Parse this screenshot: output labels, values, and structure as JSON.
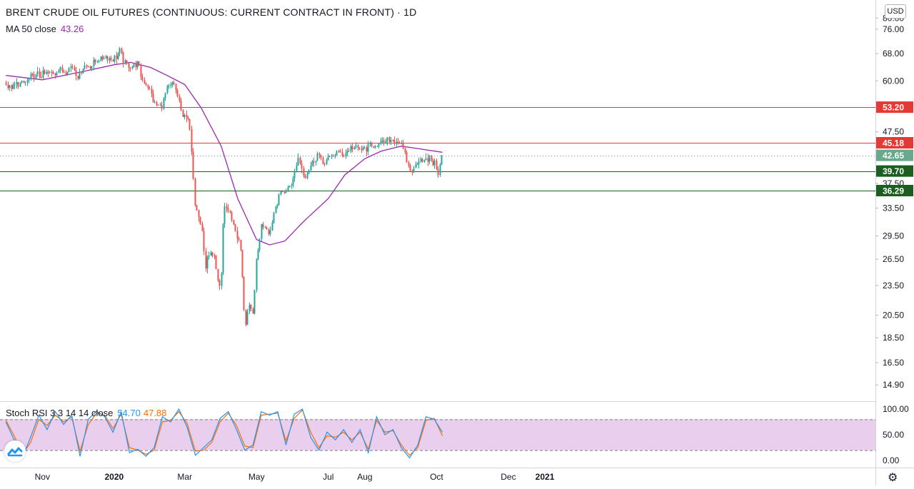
{
  "header": {
    "title": "BRENT CRUDE OIL FUTURES (CONTINUOUS: CURRENT CONTRACT IN FRONT) · 1D",
    "ma_label": "MA 50 close",
    "ma_value": "43.26",
    "currency_button": "USD"
  },
  "oscillator": {
    "label": "Stoch RSI 3 3 14 14 close",
    "k_value": "54.70",
    "d_value": "47.88",
    "axis_labels": [
      "100.00",
      "50.00",
      "0.00"
    ],
    "band_upper": 80,
    "band_lower": 20
  },
  "colors": {
    "up": "#26a69a",
    "down": "#ef5350",
    "ma": "#9c27b0",
    "resistance": "#e53935",
    "support": "#1b5e20",
    "last_price": "#6aa88c",
    "k_line": "#2196f3",
    "d_line": "#ff6d00",
    "band_fill": "#e1bee7"
  },
  "icons": {
    "logo": "tradingview-logo-icon",
    "settings": "gear-icon"
  },
  "chart_data": {
    "type": "candlestick",
    "title": "BRENT CRUDE OIL FUTURES (CONTINUOUS: CURRENT CONTRACT IN FRONT) · 1D",
    "price_axis_labels": [
      "80.00",
      "76.00",
      "68.00",
      "60.00",
      "47.50",
      "37.50",
      "33.50",
      "29.50",
      "26.50",
      "23.50",
      "20.50",
      "18.50",
      "16.50",
      "14.90"
    ],
    "time_axis_labels": [
      "Nov",
      "2020",
      "Mar",
      "May",
      "Jul",
      "Aug",
      "Oct",
      "Dec",
      "2021"
    ],
    "scale": "log",
    "horizontal_levels": [
      {
        "value": 53.2,
        "label": "53.20",
        "kind": "resistance"
      },
      {
        "value": 45.18,
        "label": "45.18",
        "kind": "resistance"
      },
      {
        "value": 39.7,
        "label": "39.70",
        "kind": "support"
      },
      {
        "value": 36.29,
        "label": "36.29",
        "kind": "support"
      }
    ],
    "last_price": {
      "value": 42.65,
      "label": "42.65"
    },
    "price_path": [
      [
        "2019-10-01",
        59.5
      ],
      [
        "2019-10-03",
        58.0
      ],
      [
        "2019-10-08",
        58.6
      ],
      [
        "2019-10-10",
        59.1
      ],
      [
        "2019-10-15",
        59.3
      ],
      [
        "2019-10-18",
        59.6
      ],
      [
        "2019-10-23",
        61.2
      ],
      [
        "2019-10-28",
        61.6
      ],
      [
        "2019-11-01",
        61.7
      ],
      [
        "2019-11-06",
        62.2
      ],
      [
        "2019-11-11",
        62.2
      ],
      [
        "2019-11-15",
        63.3
      ],
      [
        "2019-11-20",
        62.4
      ],
      [
        "2019-11-26",
        64.3
      ],
      [
        "2019-12-02",
        61.0
      ],
      [
        "2019-12-06",
        64.4
      ],
      [
        "2019-12-12",
        64.2
      ],
      [
        "2019-12-18",
        66.2
      ],
      [
        "2019-12-24",
        67.2
      ],
      [
        "2019-12-31",
        66.0
      ],
      [
        "2020-01-06",
        68.9
      ],
      [
        "2020-01-10",
        65.0
      ],
      [
        "2020-01-15",
        64.0
      ],
      [
        "2020-01-21",
        65.2
      ],
      [
        "2020-01-24",
        60.7
      ],
      [
        "2020-01-30",
        58.3
      ],
      [
        "2020-02-04",
        54.0
      ],
      [
        "2020-02-10",
        53.3
      ],
      [
        "2020-02-14",
        57.3
      ],
      [
        "2020-02-20",
        59.3
      ],
      [
        "2020-02-25",
        54.9
      ],
      [
        "2020-02-28",
        50.5
      ],
      [
        "2020-03-03",
        51.9
      ],
      [
        "2020-03-06",
        45.3
      ],
      [
        "2020-03-09",
        34.4
      ],
      [
        "2020-03-12",
        33.2
      ],
      [
        "2020-03-16",
        30.0
      ],
      [
        "2020-03-18",
        24.9
      ],
      [
        "2020-03-20",
        26.9
      ],
      [
        "2020-03-25",
        27.4
      ],
      [
        "2020-03-30",
        22.8
      ],
      [
        "2020-04-01",
        24.7
      ],
      [
        "2020-04-03",
        34.1
      ],
      [
        "2020-04-08",
        32.8
      ],
      [
        "2020-04-14",
        29.6
      ],
      [
        "2020-04-17",
        28.1
      ],
      [
        "2020-04-21",
        19.3
      ],
      [
        "2020-04-24",
        21.4
      ],
      [
        "2020-04-28",
        20.5
      ],
      [
        "2020-04-30",
        25.3
      ],
      [
        "2020-05-05",
        30.9
      ],
      [
        "2020-05-08",
        30.9
      ],
      [
        "2020-05-12",
        29.8
      ],
      [
        "2020-05-15",
        32.5
      ],
      [
        "2020-05-20",
        35.8
      ],
      [
        "2020-05-26",
        36.2
      ],
      [
        "2020-06-01",
        38.3
      ],
      [
        "2020-06-05",
        42.3
      ],
      [
        "2020-06-11",
        38.6
      ],
      [
        "2020-06-16",
        40.9
      ],
      [
        "2020-06-22",
        43.1
      ],
      [
        "2020-06-26",
        41.0
      ],
      [
        "2020-07-01",
        42.0
      ],
      [
        "2020-07-08",
        43.3
      ],
      [
        "2020-07-14",
        42.9
      ],
      [
        "2020-07-21",
        44.3
      ],
      [
        "2020-07-28",
        43.8
      ],
      [
        "2020-08-03",
        44.2
      ],
      [
        "2020-08-07",
        44.4
      ],
      [
        "2020-08-13",
        44.9
      ],
      [
        "2020-08-19",
        45.4
      ],
      [
        "2020-08-25",
        45.9
      ],
      [
        "2020-08-31",
        45.3
      ],
      [
        "2020-09-04",
        42.7
      ],
      [
        "2020-09-08",
        39.8
      ],
      [
        "2020-09-11",
        39.8
      ],
      [
        "2020-09-16",
        42.2
      ],
      [
        "2020-09-21",
        41.4
      ],
      [
        "2020-09-25",
        42.0
      ],
      [
        "2020-09-30",
        40.9
      ],
      [
        "2020-10-02",
        39.3
      ],
      [
        "2020-10-06",
        42.65
      ]
    ],
    "moving_average": [
      [
        "2019-10-01",
        61.5
      ],
      [
        "2019-11-01",
        60.3
      ],
      [
        "2019-12-01",
        62.3
      ],
      [
        "2020-01-01",
        64.6
      ],
      [
        "2020-01-15",
        65.3
      ],
      [
        "2020-02-01",
        63.8
      ],
      [
        "2020-02-15",
        61.5
      ],
      [
        "2020-03-01",
        59.0
      ],
      [
        "2020-03-15",
        53.0
      ],
      [
        "2020-04-01",
        44.5
      ],
      [
        "2020-04-15",
        35.0
      ],
      [
        "2020-05-01",
        29.0
      ],
      [
        "2020-05-12",
        28.3
      ],
      [
        "2020-05-25",
        28.8
      ],
      [
        "2020-06-10",
        31.5
      ],
      [
        "2020-07-01",
        35.0
      ],
      [
        "2020-07-15",
        39.0
      ],
      [
        "2020-08-01",
        42.0
      ],
      [
        "2020-08-15",
        43.5
      ],
      [
        "2020-09-01",
        44.5
      ],
      [
        "2020-09-15",
        44.0
      ],
      [
        "2020-10-06",
        43.26
      ]
    ],
    "stoch_rsi_k": [
      [
        "2019-10-01",
        75
      ],
      [
        "2019-10-08",
        40
      ],
      [
        "2019-10-15",
        5
      ],
      [
        "2019-10-22",
        45
      ],
      [
        "2019-10-29",
        88
      ],
      [
        "2019-11-05",
        60
      ],
      [
        "2019-11-12",
        95
      ],
      [
        "2019-11-19",
        70
      ],
      [
        "2019-11-26",
        88
      ],
      [
        "2019-12-03",
        8
      ],
      [
        "2019-12-10",
        80
      ],
      [
        "2019-12-17",
        96
      ],
      [
        "2019-12-24",
        85
      ],
      [
        "2019-12-31",
        55
      ],
      [
        "2020-01-07",
        95
      ],
      [
        "2020-01-14",
        15
      ],
      [
        "2020-01-21",
        22
      ],
      [
        "2020-01-28",
        8
      ],
      [
        "2020-02-04",
        25
      ],
      [
        "2020-02-11",
        85
      ],
      [
        "2020-02-18",
        75
      ],
      [
        "2020-02-25",
        100
      ],
      [
        "2020-03-03",
        65
      ],
      [
        "2020-03-10",
        10
      ],
      [
        "2020-03-17",
        25
      ],
      [
        "2020-03-24",
        40
      ],
      [
        "2020-03-31",
        82
      ],
      [
        "2020-04-07",
        95
      ],
      [
        "2020-04-14",
        60
      ],
      [
        "2020-04-21",
        20
      ],
      [
        "2020-04-28",
        30
      ],
      [
        "2020-05-05",
        95
      ],
      [
        "2020-05-12",
        88
      ],
      [
        "2020-05-19",
        95
      ],
      [
        "2020-05-26",
        30
      ],
      [
        "2020-06-02",
        90
      ],
      [
        "2020-06-09",
        100
      ],
      [
        "2020-06-16",
        45
      ],
      [
        "2020-06-23",
        20
      ],
      [
        "2020-06-30",
        55
      ],
      [
        "2020-07-07",
        40
      ],
      [
        "2020-07-14",
        60
      ],
      [
        "2020-07-21",
        35
      ],
      [
        "2020-07-28",
        60
      ],
      [
        "2020-08-04",
        15
      ],
      [
        "2020-08-11",
        85
      ],
      [
        "2020-08-18",
        50
      ],
      [
        "2020-08-25",
        60
      ],
      [
        "2020-09-01",
        25
      ],
      [
        "2020-09-08",
        5
      ],
      [
        "2020-09-15",
        30
      ],
      [
        "2020-09-22",
        85
      ],
      [
        "2020-09-29",
        80
      ],
      [
        "2020-10-06",
        54.7
      ]
    ],
    "stoch_rsi_d": [
      [
        "2019-10-01",
        78
      ],
      [
        "2019-10-08",
        48
      ],
      [
        "2019-10-15",
        12
      ],
      [
        "2019-10-22",
        35
      ],
      [
        "2019-10-29",
        80
      ],
      [
        "2019-11-05",
        68
      ],
      [
        "2019-11-12",
        88
      ],
      [
        "2019-11-19",
        75
      ],
      [
        "2019-11-26",
        84
      ],
      [
        "2019-12-03",
        18
      ],
      [
        "2019-12-10",
        70
      ],
      [
        "2019-12-17",
        92
      ],
      [
        "2019-12-24",
        88
      ],
      [
        "2019-12-31",
        62
      ],
      [
        "2020-01-07",
        90
      ],
      [
        "2020-01-14",
        25
      ],
      [
        "2020-01-21",
        20
      ],
      [
        "2020-01-28",
        12
      ],
      [
        "2020-02-04",
        20
      ],
      [
        "2020-02-11",
        75
      ],
      [
        "2020-02-18",
        78
      ],
      [
        "2020-02-25",
        95
      ],
      [
        "2020-03-03",
        72
      ],
      [
        "2020-03-10",
        18
      ],
      [
        "2020-03-17",
        20
      ],
      [
        "2020-03-24",
        35
      ],
      [
        "2020-03-31",
        75
      ],
      [
        "2020-04-07",
        92
      ],
      [
        "2020-04-14",
        68
      ],
      [
        "2020-04-21",
        28
      ],
      [
        "2020-04-28",
        25
      ],
      [
        "2020-05-05",
        88
      ],
      [
        "2020-05-12",
        90
      ],
      [
        "2020-05-19",
        92
      ],
      [
        "2020-05-26",
        38
      ],
      [
        "2020-06-02",
        82
      ],
      [
        "2020-06-09",
        98
      ],
      [
        "2020-06-16",
        55
      ],
      [
        "2020-06-23",
        25
      ],
      [
        "2020-06-30",
        48
      ],
      [
        "2020-07-07",
        45
      ],
      [
        "2020-07-14",
        55
      ],
      [
        "2020-07-21",
        40
      ],
      [
        "2020-07-28",
        55
      ],
      [
        "2020-08-04",
        22
      ],
      [
        "2020-08-11",
        78
      ],
      [
        "2020-08-18",
        55
      ],
      [
        "2020-08-25",
        58
      ],
      [
        "2020-09-01",
        30
      ],
      [
        "2020-09-08",
        10
      ],
      [
        "2020-09-15",
        25
      ],
      [
        "2020-09-22",
        78
      ],
      [
        "2020-09-29",
        82
      ],
      [
        "2020-10-06",
        47.88
      ]
    ]
  }
}
